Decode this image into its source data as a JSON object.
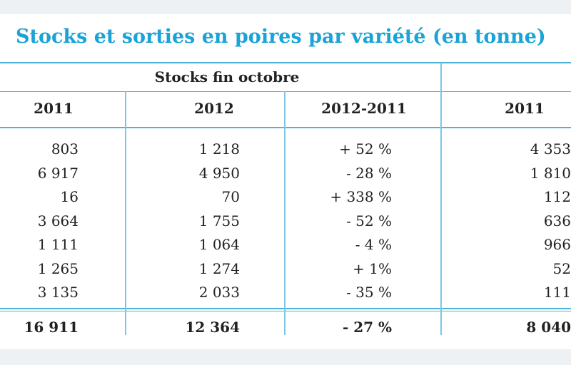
{
  "table": {
    "title": "Stocks et sorties en poires par variété (en tonne)",
    "group_headers": [
      "Stocks fin octobre"
    ],
    "columns": [
      "2011",
      "2012",
      "2012-2011",
      "2011"
    ],
    "rows": [
      [
        "803",
        "1 218",
        "+ 52 %",
        "4 353"
      ],
      [
        "6 917",
        "4 950",
        "- 28 %",
        "1 810"
      ],
      [
        "16",
        "70",
        "+ 338 %",
        "112"
      ],
      [
        "3 664",
        "1 755",
        "- 52 %",
        "636"
      ],
      [
        "1 111",
        "1 064",
        "- 4 %",
        "966"
      ],
      [
        "1 265",
        "1 274",
        "+ 1%",
        "52"
      ],
      [
        "3 135",
        "2 033",
        "- 35 %",
        "111"
      ]
    ],
    "total": [
      "16 911",
      "12 364",
      "- 27 %",
      "8 040"
    ]
  }
}
